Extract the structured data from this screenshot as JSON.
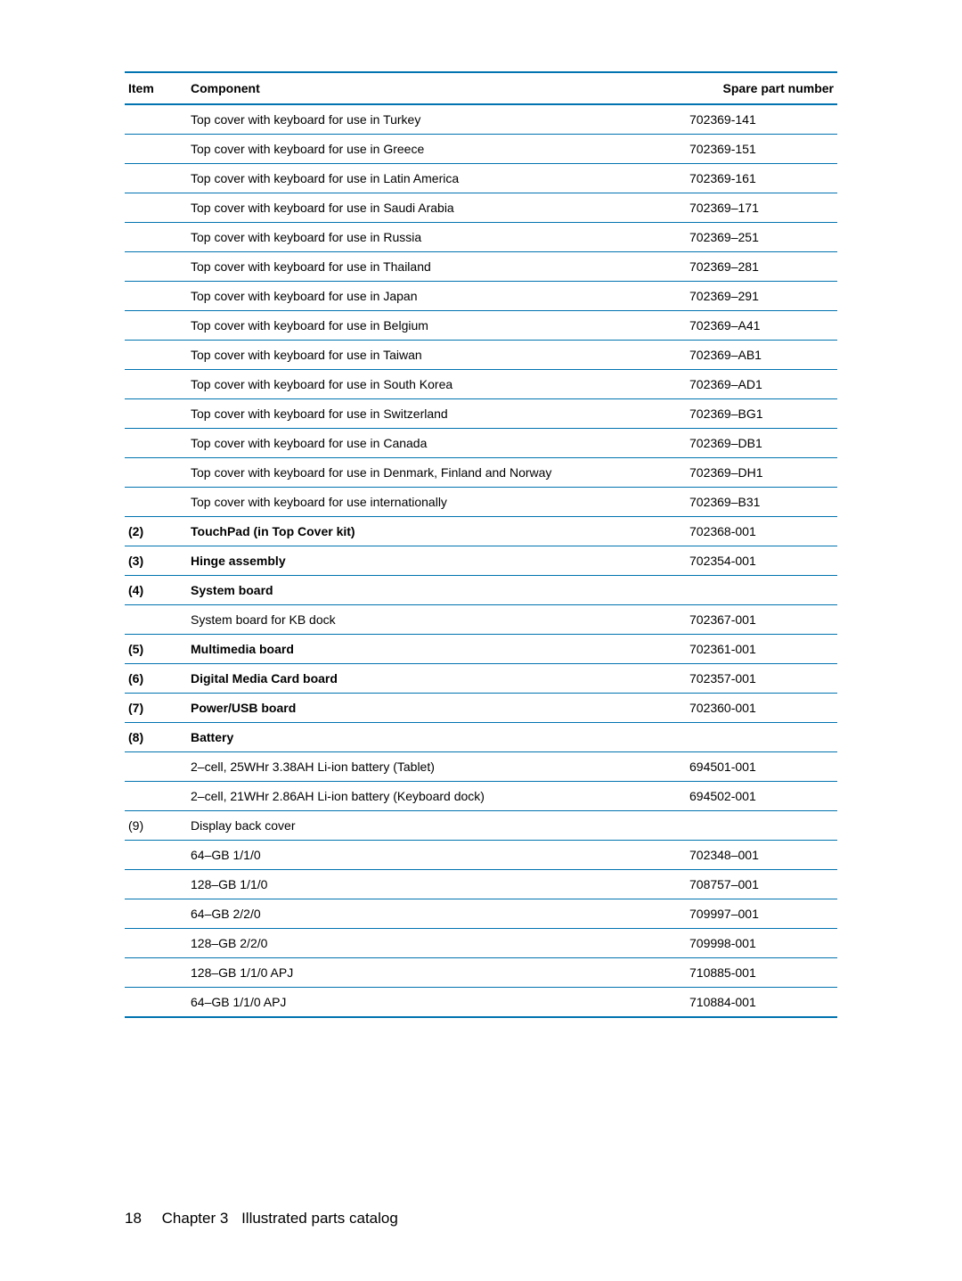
{
  "table": {
    "headers": {
      "item": "Item",
      "component": "Component",
      "part": "Spare part number"
    },
    "rows": [
      {
        "item": "",
        "component": "Top cover with keyboard for use in Turkey",
        "part": "702369-141",
        "bold": false
      },
      {
        "item": "",
        "component": "Top cover with keyboard for use in Greece",
        "part": "702369-151",
        "bold": false
      },
      {
        "item": "",
        "component": "Top cover with keyboard for use in Latin America",
        "part": "702369-161",
        "bold": false
      },
      {
        "item": "",
        "component": "Top cover with keyboard for use in Saudi Arabia",
        "part": "702369–171",
        "bold": false
      },
      {
        "item": "",
        "component": "Top cover with keyboard for use in Russia",
        "part": "702369–251",
        "bold": false
      },
      {
        "item": "",
        "component": "Top cover with keyboard for use in Thailand",
        "part": "702369–281",
        "bold": false
      },
      {
        "item": "",
        "component": "Top cover with keyboard for use in Japan",
        "part": "702369–291",
        "bold": false
      },
      {
        "item": "",
        "component": "Top cover with keyboard for use in Belgium",
        "part": "702369–A41",
        "bold": false
      },
      {
        "item": "",
        "component": "Top cover with keyboard for use in Taiwan",
        "part": "702369–AB1",
        "bold": false
      },
      {
        "item": "",
        "component": "Top cover with keyboard for use in South Korea",
        "part": "702369–AD1",
        "bold": false
      },
      {
        "item": "",
        "component": "Top cover with keyboard for use in Switzerland",
        "part": "702369–BG1",
        "bold": false
      },
      {
        "item": "",
        "component": "Top cover with keyboard for use in Canada",
        "part": "702369–DB1",
        "bold": false
      },
      {
        "item": "",
        "component": "Top cover with keyboard for use in Denmark, Finland and Norway",
        "part": "702369–DH1",
        "bold": false
      },
      {
        "item": "",
        "component": "Top cover with keyboard for use internationally",
        "part": "702369–B31",
        "bold": false
      },
      {
        "item": "(2)",
        "component": "TouchPad (in Top Cover kit)",
        "part": "702368-001",
        "bold": true
      },
      {
        "item": "(3)",
        "component": "Hinge assembly",
        "part": "702354-001",
        "bold": true
      },
      {
        "item": "(4)",
        "component": "System board",
        "part": "",
        "bold": true
      },
      {
        "item": "",
        "component": "System board for KB dock",
        "part": "702367-001",
        "bold": false
      },
      {
        "item": "(5)",
        "component": "Multimedia board",
        "part": "702361-001",
        "bold": true
      },
      {
        "item": "(6)",
        "component": "Digital Media Card board",
        "part": "702357-001",
        "bold": true
      },
      {
        "item": "(7)",
        "component": "Power/USB board",
        "part": "702360-001",
        "bold": true
      },
      {
        "item": "(8)",
        "component": "Battery",
        "part": "",
        "bold": true
      },
      {
        "item": "",
        "component": "2–cell, 25WHr 3.38AH Li-ion battery (Tablet)",
        "part": "694501-001",
        "bold": false
      },
      {
        "item": "",
        "component": "2–cell, 21WHr 2.86AH Li-ion battery (Keyboard dock)",
        "part": "694502-001",
        "bold": false
      },
      {
        "item": "(9)",
        "component": "Display back cover",
        "part": "",
        "bold": false
      },
      {
        "item": "",
        "component": "64–GB 1/1/0",
        "part": "702348–001",
        "bold": false
      },
      {
        "item": "",
        "component": "128–GB 1/1/0",
        "part": "708757–001",
        "bold": false
      },
      {
        "item": "",
        "component": "64–GB 2/2/0",
        "part": "709997–001",
        "bold": false
      },
      {
        "item": "",
        "component": "128–GB 2/2/0",
        "part": "709998-001",
        "bold": false
      },
      {
        "item": "",
        "component": "128–GB 1/1/0 APJ",
        "part": "710885-001",
        "bold": false
      },
      {
        "item": "",
        "component": "64–GB 1/1/0 APJ",
        "part": "710884-001",
        "bold": false,
        "last": true
      }
    ]
  },
  "footer": {
    "page_num": "18",
    "chapter_num": "Chapter 3",
    "title": "Illustrated parts catalog"
  },
  "style": {
    "border_color": "#0073b0",
    "text_color": "#000000",
    "background_color": "#ffffff",
    "body_fontsize": 14,
    "footer_fontsize": 17
  }
}
